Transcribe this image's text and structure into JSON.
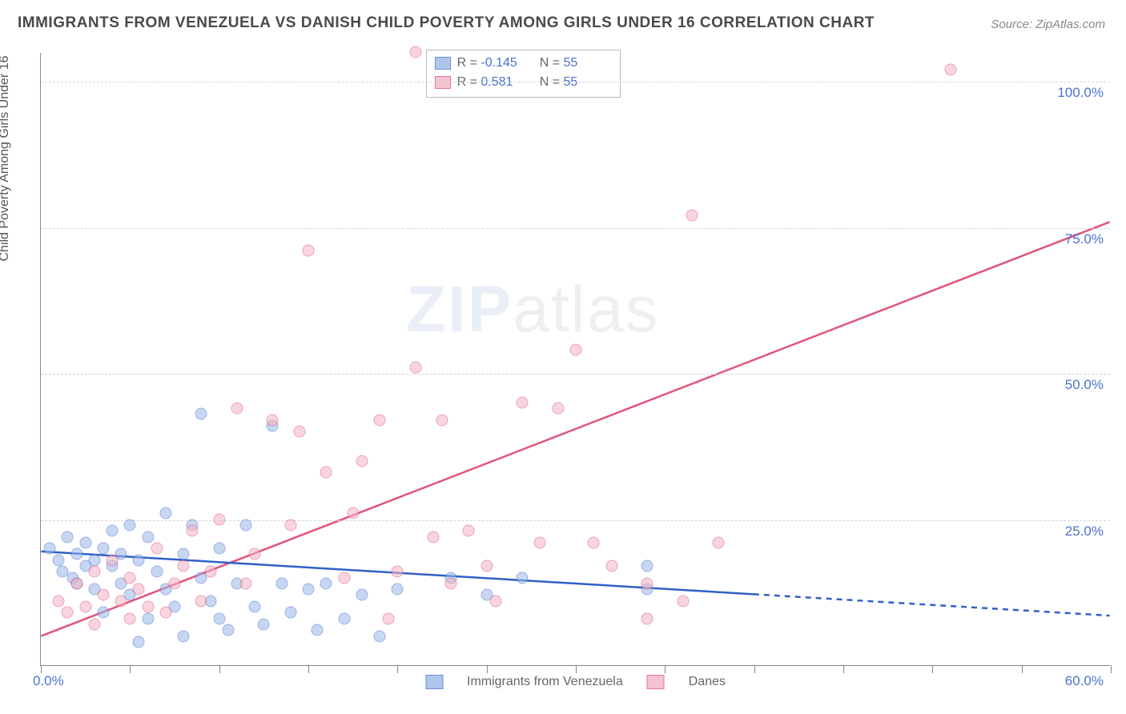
{
  "title": "IMMIGRANTS FROM VENEZUELA VS DANISH CHILD POVERTY AMONG GIRLS UNDER 16 CORRELATION CHART",
  "source_label": "Source: ",
  "source_name": "ZipAtlas.com",
  "ylabel": "Child Poverty Among Girls Under 16",
  "watermark": {
    "part1": "ZIP",
    "part2": "atlas"
  },
  "plot": {
    "background": "#ffffff",
    "axis_color": "#888888",
    "grid_color": "#d6d6d6",
    "xlim": [
      0,
      60
    ],
    "ylim": [
      0,
      105
    ],
    "x_ticks": [
      0,
      5,
      10,
      15,
      20,
      25,
      30,
      35,
      40,
      45,
      50,
      55,
      60
    ],
    "y_grid": [
      25,
      50,
      75,
      100
    ],
    "y_labels": [
      {
        "v": 25,
        "t": "25.0%"
      },
      {
        "v": 50,
        "t": "50.0%"
      },
      {
        "v": 75,
        "t": "75.0%"
      },
      {
        "v": 100,
        "t": "100.0%"
      }
    ],
    "x_label_min": "0.0%",
    "x_label_max": "60.0%"
  },
  "series": {
    "blue": {
      "label": "Immigrants from Venezuela",
      "fill": "#9bb8e8",
      "fill_opacity": 0.55,
      "stroke": "#4a72d0",
      "marker_size": 15,
      "R": "-0.145",
      "N": "55",
      "trend": {
        "solid_to_x": 40,
        "y_at_x0": 19.5,
        "y_at_x60": 8.5,
        "color": "#3060c8",
        "width": 2.5
      },
      "points": [
        [
          0.5,
          20
        ],
        [
          1,
          18
        ],
        [
          1.2,
          16
        ],
        [
          1.5,
          22
        ],
        [
          1.8,
          15
        ],
        [
          2,
          19
        ],
        [
          2,
          14
        ],
        [
          2.5,
          17
        ],
        [
          2.5,
          21
        ],
        [
          3,
          18
        ],
        [
          3,
          13
        ],
        [
          3.5,
          20
        ],
        [
          3.5,
          9
        ],
        [
          4,
          23
        ],
        [
          4,
          17
        ],
        [
          4.5,
          14
        ],
        [
          4.5,
          19
        ],
        [
          5,
          24
        ],
        [
          5,
          12
        ],
        [
          5.5,
          18
        ],
        [
          5.5,
          4
        ],
        [
          6,
          22
        ],
        [
          6,
          8
        ],
        [
          6.5,
          16
        ],
        [
          7,
          26
        ],
        [
          7,
          13
        ],
        [
          7.5,
          10
        ],
        [
          8,
          19
        ],
        [
          8,
          5
        ],
        [
          8.5,
          24
        ],
        [
          9,
          15
        ],
        [
          9,
          43
        ],
        [
          9.5,
          11
        ],
        [
          10,
          20
        ],
        [
          10,
          8
        ],
        [
          10.5,
          6
        ],
        [
          11,
          14
        ],
        [
          11.5,
          24
        ],
        [
          12,
          10
        ],
        [
          12.5,
          7
        ],
        [
          13,
          41
        ],
        [
          13.5,
          14
        ],
        [
          14,
          9
        ],
        [
          15,
          13
        ],
        [
          15.5,
          6
        ],
        [
          16,
          14
        ],
        [
          17,
          8
        ],
        [
          18,
          12
        ],
        [
          19,
          5
        ],
        [
          20,
          13
        ],
        [
          23,
          15
        ],
        [
          25,
          12
        ],
        [
          27,
          15
        ],
        [
          34,
          17
        ],
        [
          34,
          13
        ]
      ]
    },
    "pink": {
      "label": "Danes",
      "fill": "#f3b4c4",
      "fill_opacity": 0.55,
      "stroke": "#e0557a",
      "marker_size": 15,
      "R": "0.581",
      "N": "55",
      "trend": {
        "solid_to_x": 60,
        "y_at_x0": 5,
        "y_at_x60": 76,
        "color": "#e0557a",
        "width": 2.5
      },
      "points": [
        [
          1,
          11
        ],
        [
          1.5,
          9
        ],
        [
          2,
          14
        ],
        [
          2.5,
          10
        ],
        [
          3,
          16
        ],
        [
          3,
          7
        ],
        [
          3.5,
          12
        ],
        [
          4,
          18
        ],
        [
          4.5,
          11
        ],
        [
          5,
          15
        ],
        [
          5,
          8
        ],
        [
          5.5,
          13
        ],
        [
          6,
          10
        ],
        [
          6.5,
          20
        ],
        [
          7,
          9
        ],
        [
          7.5,
          14
        ],
        [
          8,
          17
        ],
        [
          8.5,
          23
        ],
        [
          9,
          11
        ],
        [
          9.5,
          16
        ],
        [
          10,
          25
        ],
        [
          11,
          44
        ],
        [
          11.5,
          14
        ],
        [
          12,
          19
        ],
        [
          13,
          42
        ],
        [
          14,
          24
        ],
        [
          14.5,
          40
        ],
        [
          15,
          71
        ],
        [
          16,
          33
        ],
        [
          17,
          15
        ],
        [
          17.5,
          26
        ],
        [
          18,
          35
        ],
        [
          19,
          42
        ],
        [
          19.5,
          8
        ],
        [
          20,
          16
        ],
        [
          21,
          51
        ],
        [
          22,
          22
        ],
        [
          22.5,
          42
        ],
        [
          23,
          14
        ],
        [
          24,
          23
        ],
        [
          25,
          17
        ],
        [
          25.5,
          11
        ],
        [
          27,
          45
        ],
        [
          28,
          21
        ],
        [
          29,
          44
        ],
        [
          30,
          54
        ],
        [
          31,
          21
        ],
        [
          32,
          17
        ],
        [
          34,
          14
        ],
        [
          36,
          11
        ],
        [
          36.5,
          77
        ],
        [
          38,
          21
        ],
        [
          21,
          105
        ],
        [
          51,
          102
        ],
        [
          34,
          8
        ]
      ]
    }
  },
  "stats_box": {
    "R_label": "R =",
    "N_label": "N ="
  },
  "colors": {
    "stat_value": "#4a72d0",
    "text": "#666666"
  }
}
